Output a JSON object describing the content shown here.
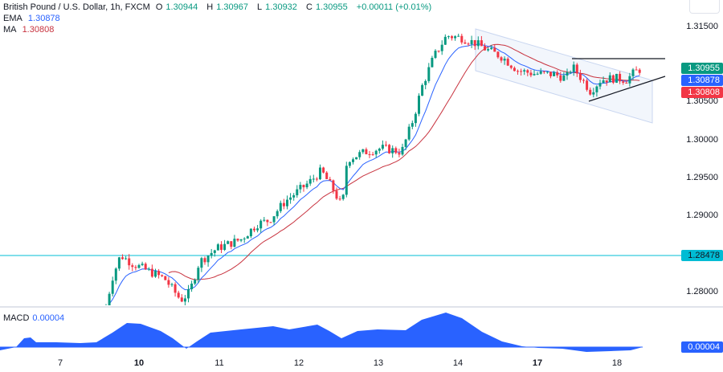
{
  "header": {
    "symbol": "British Pound / U.S. Dollar, 1h, FXCM",
    "open_label": "O",
    "open": "1.30944",
    "high_label": "H",
    "high": "1.30967",
    "low_label": "L",
    "low": "1.30932",
    "close_label": "C",
    "close": "1.30955",
    "change": "+0.00011 (+0.01%)"
  },
  "indicators": {
    "ema": {
      "label": "EMA",
      "value": "1.30878",
      "color": "#2962ff"
    },
    "ma": {
      "label": "MA",
      "value": "1.30808",
      "color": "#c8333f"
    },
    "macd": {
      "label": "MACD",
      "value": "0.00004",
      "color": "#2962ff"
    }
  },
  "price_axis": {
    "ticks": [
      "1.31500",
      "1.30000",
      "1.29500",
      "1.29000",
      "1.28000",
      "1.30500"
    ],
    "labels": {
      "close": {
        "value": "1.30955",
        "color": "#089981"
      },
      "ema": {
        "value": "1.30878",
        "color": "#2962ff"
      },
      "ma": {
        "value": "1.30808",
        "color": "#f23645"
      },
      "hline": {
        "value": "1.28478",
        "color": "#00bcd4"
      }
    },
    "macd_label": {
      "value": "0.00004",
      "color": "#2962ff"
    }
  },
  "time_axis": {
    "ticks": [
      {
        "label": "7",
        "bold": false
      },
      {
        "label": "10",
        "bold": true
      },
      {
        "label": "11",
        "bold": false
      },
      {
        "label": "12",
        "bold": false
      },
      {
        "label": "13",
        "bold": false
      },
      {
        "label": "14",
        "bold": false
      },
      {
        "label": "17",
        "bold": true
      },
      {
        "label": "18",
        "bold": false
      }
    ]
  },
  "colors": {
    "up": "#089981",
    "down": "#f23645",
    "ema": "#2962ff",
    "ma": "#c8333f",
    "hline": "#00bcd4",
    "macd_fill": "#2962ff"
  },
  "chart_data": {
    "type": "candlestick",
    "title": "British Pound / U.S. Dollar, 1h, FXCM",
    "xlabel": "",
    "ylabel": "",
    "ylim": [
      1.2775,
      1.3165
    ],
    "x_ticks": [
      "7",
      "10",
      "11",
      "12",
      "13",
      "14",
      "17",
      "18"
    ],
    "y_ticks": [
      1.28,
      1.285,
      1.29,
      1.295,
      1.3,
      1.305,
      1.31,
      1.315
    ],
    "horizontal_line": 1.28478,
    "last": {
      "open": 1.30944,
      "high": 1.30967,
      "low": 1.30932,
      "close": 1.30955,
      "change": 0.00011,
      "change_pct": 0.01
    },
    "ema_last": 1.30878,
    "ma_last": 1.30808,
    "macd_last": 4e-05,
    "close_path_approx": [
      {
        "x": "7",
        "close": 1.2775
      },
      {
        "x": "9 late",
        "close": 1.2849
      },
      {
        "x": "10",
        "close": 1.2835
      },
      {
        "x": "10 mid",
        "close": 1.28
      },
      {
        "x": "11",
        "close": 1.2875
      },
      {
        "x": "11 mid",
        "close": 1.2905
      },
      {
        "x": "12",
        "close": 1.2965
      },
      {
        "x": "12 mid",
        "close": 1.291
      },
      {
        "x": "13",
        "close": 1.2995
      },
      {
        "x": "13 mid",
        "close": 1.3005
      },
      {
        "x": "14",
        "close": 1.313
      },
      {
        "x": "14 mid",
        "close": 1.312
      },
      {
        "x": "17",
        "close": 1.3085
      },
      {
        "x": "17 mid",
        "close": 1.3075
      },
      {
        "x": "18",
        "close": 1.3082
      },
      {
        "x": "18 last",
        "close": 1.30955
      }
    ],
    "annotations": [
      "Descending parallel channel from 14 to 18",
      "Triangle: horizontal resistance ~1.3105 and rising support from ~1.3055",
      "Horizontal line at 1.28478"
    ],
    "macd_series_approx": [
      {
        "x": "6",
        "value": 0.0
      },
      {
        "x": "7",
        "value": 0.0004
      },
      {
        "x": "9",
        "value": 0.0003
      },
      {
        "x": "10",
        "value": 0.0012
      },
      {
        "x": "10 late",
        "value": 0.0
      },
      {
        "x": "11",
        "value": 0.0007
      },
      {
        "x": "12",
        "value": 0.0009
      },
      {
        "x": "12 late",
        "value": 0.0004
      },
      {
        "x": "13",
        "value": 0.0008
      },
      {
        "x": "14",
        "value": 0.0014
      },
      {
        "x": "15",
        "value": 0.0005
      },
      {
        "x": "17",
        "value": 0.0
      },
      {
        "x": "17 mid",
        "value": -0.0002
      },
      {
        "x": "18",
        "value": -0.0001
      },
      {
        "x": "18 last",
        "value": 4e-05
      }
    ]
  }
}
